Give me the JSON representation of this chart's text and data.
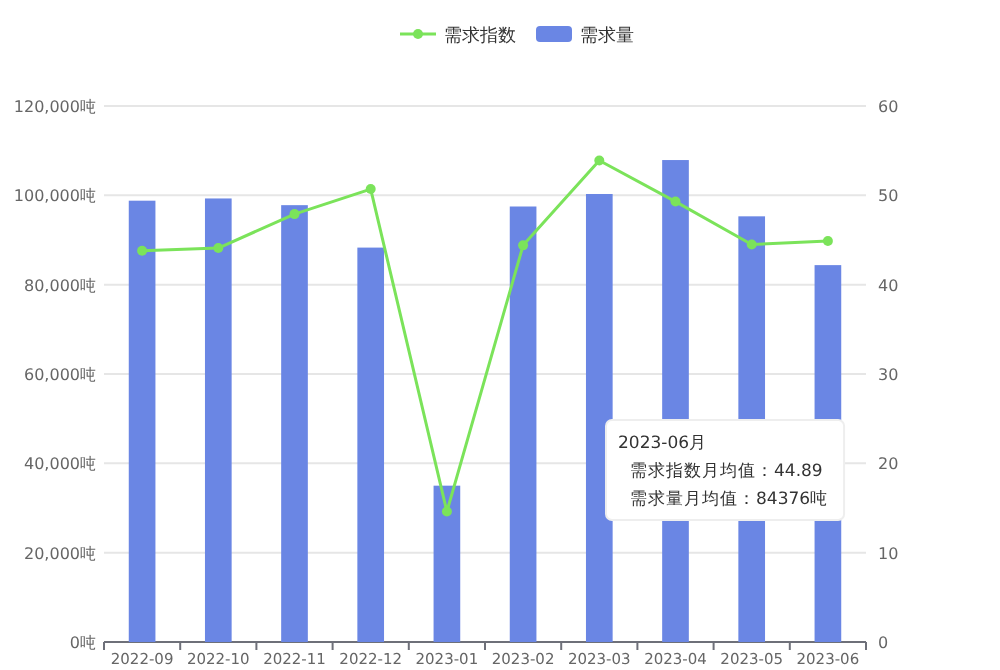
{
  "chart_data": {
    "type": "bar",
    "categories": [
      "2022-09",
      "2022-10",
      "2022-11",
      "2022-12",
      "2023-01",
      "2023-02",
      "2023-03",
      "2023-04",
      "2023-05",
      "2023-06"
    ],
    "series": [
      {
        "name": "需求指数",
        "type": "line",
        "axis": "y2",
        "color": "#7be35a",
        "values": [
          43.8,
          44.1,
          47.9,
          50.7,
          14.6,
          44.4,
          53.9,
          49.3,
          44.5,
          44.89
        ]
      },
      {
        "name": "需求量",
        "color": "#6a86e4",
        "values": [
          98800,
          99300,
          97800,
          88300,
          35000,
          97500,
          100300,
          107900,
          95300,
          84376
        ]
      }
    ],
    "ylim": [
      0,
      120000
    ],
    "yticks": [
      {
        "value": 0,
        "label": "0吨"
      },
      {
        "value": 20000,
        "label": "20,000吨"
      },
      {
        "value": 40000,
        "label": "40,000吨"
      },
      {
        "value": 60000,
        "label": "60,000吨"
      },
      {
        "value": 80000,
        "label": "80,000吨"
      },
      {
        "value": 100000,
        "label": "100,000吨"
      },
      {
        "value": 120000,
        "label": "120,000吨"
      }
    ],
    "y2lim": [
      0,
      60
    ],
    "y2ticks": [
      0,
      10,
      20,
      30,
      40,
      50,
      60
    ],
    "grid": "y",
    "legend": "top",
    "marker": "circle",
    "annotations": [
      "2023-06月",
      "需求指数月均值：44.89",
      "需求量月均值：84376吨"
    ]
  }
}
